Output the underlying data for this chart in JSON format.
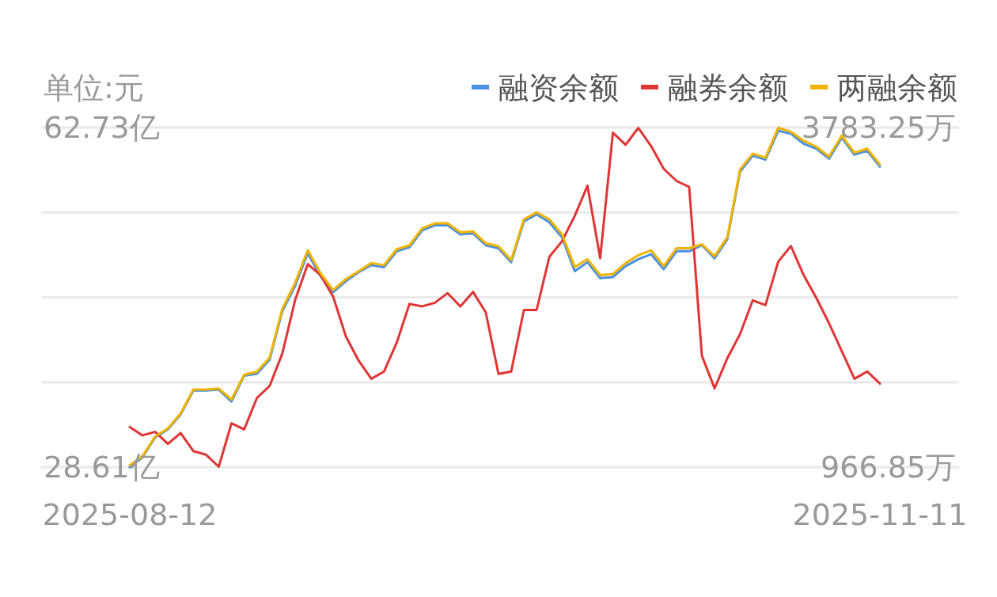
{
  "chart_data": {
    "type": "line",
    "ylabel": "单位:元",
    "legend": "top right",
    "grid": "y",
    "categories": [
      "2025-08-12",
      null,
      null,
      null,
      null,
      null,
      null,
      null,
      null,
      null,
      null,
      null,
      null,
      null,
      null,
      null,
      null,
      null,
      null,
      null,
      null,
      null,
      null,
      null,
      null,
      null,
      null,
      null,
      null,
      null,
      null,
      null,
      null,
      null,
      null,
      null,
      null,
      null,
      null,
      null,
      null,
      null,
      null,
      null,
      null,
      null,
      null,
      null,
      null,
      null,
      null,
      null,
      null,
      null,
      null,
      null,
      null,
      null,
      null,
      "2025-11-11"
    ],
    "ylim": [
      28.61,
      62.73
    ],
    "yticks": [
      {
        "value": 28.61,
        "label": "28.61亿"
      },
      {
        "value": 37.14,
        "label": null
      },
      {
        "value": 45.67,
        "label": null
      },
      {
        "value": 54.2,
        "label": null
      },
      {
        "value": 62.73,
        "label": "62.73亿"
      }
    ],
    "y2lim": [
      966.85,
      3783.25
    ],
    "y2ticks": [
      {
        "value": 966.85,
        "label": "966.85万"
      },
      {
        "value": 1670.95,
        "label": null
      },
      {
        "value": 2375.05,
        "label": null
      },
      {
        "value": 3079.15,
        "label": null
      },
      {
        "value": 3783.25,
        "label": "3783.25万"
      }
    ],
    "series": [
      {
        "name": "融资余额",
        "color": "#4a90e2",
        "values": [
          28.61,
          29.6,
          31.6,
          32.4,
          33.9,
          36.3,
          36.3,
          36.4,
          35.2,
          37.8,
          38.0,
          39.4,
          44.3,
          46.8,
          50.1,
          47.8,
          46.2,
          47.3,
          48.2,
          48.9,
          48.7,
          50.3,
          50.7,
          52.4,
          52.9,
          52.9,
          52.0,
          52.1,
          50.9,
          50.6,
          49.2,
          53.3,
          54.0,
          53.2,
          51.7,
          48.3,
          49.2,
          47.6,
          47.7,
          48.8,
          49.5,
          50.0,
          48.5,
          50.3,
          50.3,
          50.9,
          49.6,
          51.5,
          58.3,
          59.9,
          59.5,
          62.4,
          62.1,
          61.1,
          60.6,
          59.6,
          61.7,
          60.0,
          60.4,
          58.8
        ]
      },
      {
        "name": "融券余额",
        "color": "#e03535",
        "axis": "y2",
        "values": [
          1300,
          1230,
          1260,
          1160,
          1250,
          1100,
          1070,
          970,
          1330,
          1280,
          1540,
          1640,
          1910,
          2350,
          2650,
          2560,
          2380,
          2050,
          1850,
          1700,
          1760,
          2000,
          2320,
          2300,
          2330,
          2410,
          2300,
          2420,
          2250,
          1740,
          1760,
          2270,
          2270,
          2710,
          2840,
          3050,
          3300,
          2700,
          3740,
          3640,
          3780,
          3630,
          3440,
          3340,
          3290,
          1890,
          1620,
          1870,
          2070,
          2350,
          2310,
          2670,
          2800,
          2560,
          2370,
          2160,
          1930,
          1700,
          1760,
          1660
        ]
      },
      {
        "name": "两融余额",
        "color": "#f0b400",
        "values": [
          28.8,
          29.7,
          31.7,
          32.5,
          34.0,
          36.4,
          36.4,
          36.5,
          35.4,
          37.9,
          38.2,
          39.6,
          44.5,
          47.1,
          50.4,
          48.1,
          46.4,
          47.5,
          48.3,
          49.1,
          48.9,
          50.5,
          50.9,
          52.6,
          53.1,
          53.1,
          52.2,
          52.3,
          51.1,
          50.8,
          49.4,
          53.5,
          54.2,
          53.5,
          52.0,
          48.7,
          49.5,
          47.9,
          48.0,
          49.1,
          49.9,
          50.4,
          48.8,
          50.6,
          50.6,
          51.0,
          49.8,
          51.7,
          58.5,
          60.1,
          59.7,
          62.7,
          62.3,
          61.4,
          60.8,
          59.8,
          61.9,
          60.2,
          60.6,
          59.0
        ]
      }
    ]
  }
}
